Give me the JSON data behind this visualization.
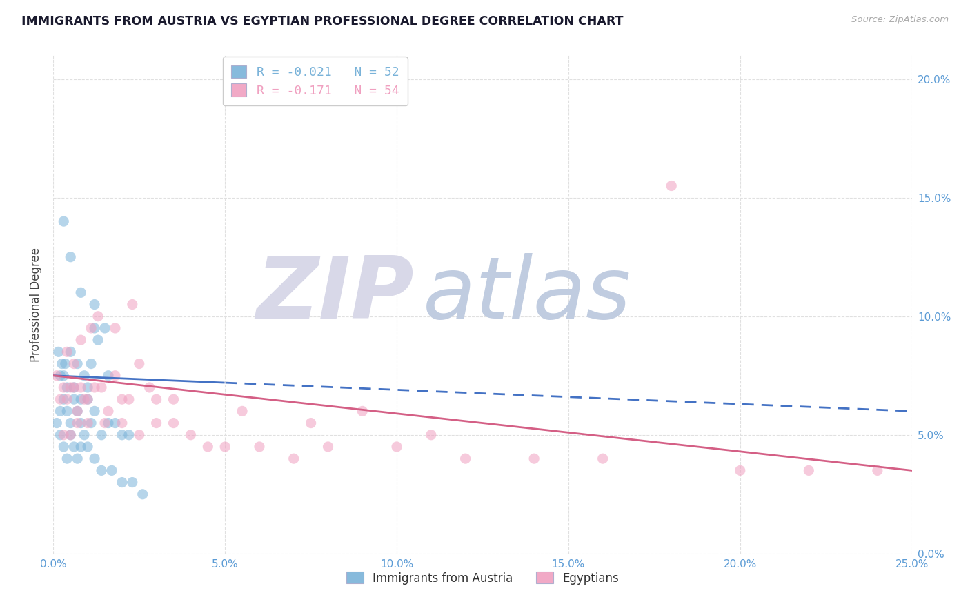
{
  "title": "IMMIGRANTS FROM AUSTRIA VS EGYPTIAN PROFESSIONAL DEGREE CORRELATION CHART",
  "source_text": "Source: ZipAtlas.com",
  "ylabel": "Professional Degree",
  "series": [
    {
      "name": "Immigrants from Austria",
      "color": "#7ab3d9",
      "legend_text": "R = -0.021   N = 52",
      "points_x": [
        0.15,
        0.2,
        0.25,
        0.3,
        0.35,
        0.4,
        0.5,
        0.6,
        0.7,
        0.8,
        0.9,
        1.0,
        1.1,
        1.2,
        1.3,
        1.5,
        1.6,
        0.2,
        0.3,
        0.4,
        0.5,
        0.6,
        0.7,
        0.8,
        0.9,
        1.0,
        1.1,
        1.2,
        1.4,
        1.6,
        1.8,
        2.0,
        2.2,
        0.1,
        0.2,
        0.3,
        0.4,
        0.5,
        0.6,
        0.7,
        0.8,
        1.0,
        1.2,
        1.4,
        1.7,
        2.0,
        2.3,
        2.6,
        0.3,
        0.5,
        0.8,
        1.2
      ],
      "points_y": [
        8.5,
        7.5,
        8.0,
        7.5,
        8.0,
        7.0,
        8.5,
        7.0,
        8.0,
        6.5,
        7.5,
        7.0,
        8.0,
        9.5,
        9.0,
        9.5,
        7.5,
        6.0,
        6.5,
        6.0,
        5.5,
        6.5,
        6.0,
        5.5,
        5.0,
        6.5,
        5.5,
        6.0,
        5.0,
        5.5,
        5.5,
        5.0,
        5.0,
        5.5,
        5.0,
        4.5,
        4.0,
        5.0,
        4.5,
        4.0,
        4.5,
        4.5,
        4.0,
        3.5,
        3.5,
        3.0,
        3.0,
        2.5,
        14.0,
        12.5,
        11.0,
        10.5
      ]
    },
    {
      "name": "Egyptians",
      "color": "#f0a0c0",
      "legend_text": "R = -0.171   N = 54",
      "points_x": [
        0.1,
        0.2,
        0.3,
        0.4,
        0.5,
        0.6,
        0.7,
        0.8,
        0.9,
        1.0,
        1.2,
        1.4,
        1.6,
        1.8,
        2.0,
        2.2,
        2.5,
        2.8,
        3.0,
        0.3,
        0.5,
        0.7,
        1.0,
        1.5,
        2.0,
        2.5,
        3.0,
        3.5,
        4.0,
        4.5,
        5.0,
        6.0,
        7.0,
        8.0,
        10.0,
        12.0,
        14.0,
        16.0,
        20.0,
        22.0,
        24.0,
        0.4,
        0.6,
        0.8,
        1.1,
        1.3,
        1.8,
        2.3,
        3.5,
        5.5,
        7.5,
        9.0,
        11.0,
        18.0
      ],
      "points_y": [
        7.5,
        6.5,
        7.0,
        6.5,
        7.0,
        7.0,
        6.0,
        7.0,
        6.5,
        6.5,
        7.0,
        7.0,
        6.0,
        7.5,
        6.5,
        6.5,
        8.0,
        7.0,
        6.5,
        5.0,
        5.0,
        5.5,
        5.5,
        5.5,
        5.5,
        5.0,
        5.5,
        5.5,
        5.0,
        4.5,
        4.5,
        4.5,
        4.0,
        4.5,
        4.5,
        4.0,
        4.0,
        4.0,
        3.5,
        3.5,
        3.5,
        8.5,
        8.0,
        9.0,
        9.5,
        10.0,
        9.5,
        10.5,
        6.5,
        6.0,
        5.5,
        6.0,
        5.0,
        15.5
      ]
    }
  ],
  "trend_lines": [
    {
      "color": "#5b9bd5",
      "x_solid_end": 5.0,
      "slope_approx": -0.06
    },
    {
      "color": "#e87ca0",
      "solid": true,
      "slope_approx": -0.17
    }
  ],
  "xlim": [
    0.0,
    25.0
  ],
  "ylim": [
    0.0,
    21.0
  ],
  "xticks": [
    0.0,
    5.0,
    10.0,
    15.0,
    20.0,
    25.0
  ],
  "xtick_labels": [
    "0.0%",
    "5.0%",
    "10.0%",
    "15.0%",
    "20.0%",
    "25.0%"
  ],
  "yticks": [
    0.0,
    5.0,
    10.0,
    15.0,
    20.0
  ],
  "ytick_labels_right": [
    "0.0%",
    "5.0%",
    "10.0%",
    "15.0%",
    "20.0%"
  ],
  "watermark_zip": "ZIP",
  "watermark_atlas": "atlas",
  "watermark_color_zip": "#d8d8e8",
  "watermark_color_atlas": "#c0cce0",
  "background_color": "#ffffff",
  "grid_color": "#e0e0e0",
  "title_color": "#1a1a2e",
  "axis_label_color": "#444444",
  "tick_color": "#5b9bd5",
  "legend_label_1": "Immigrants from Austria",
  "legend_label_2": "Egyptians",
  "scatter_alpha": 0.55,
  "scatter_size": 120
}
